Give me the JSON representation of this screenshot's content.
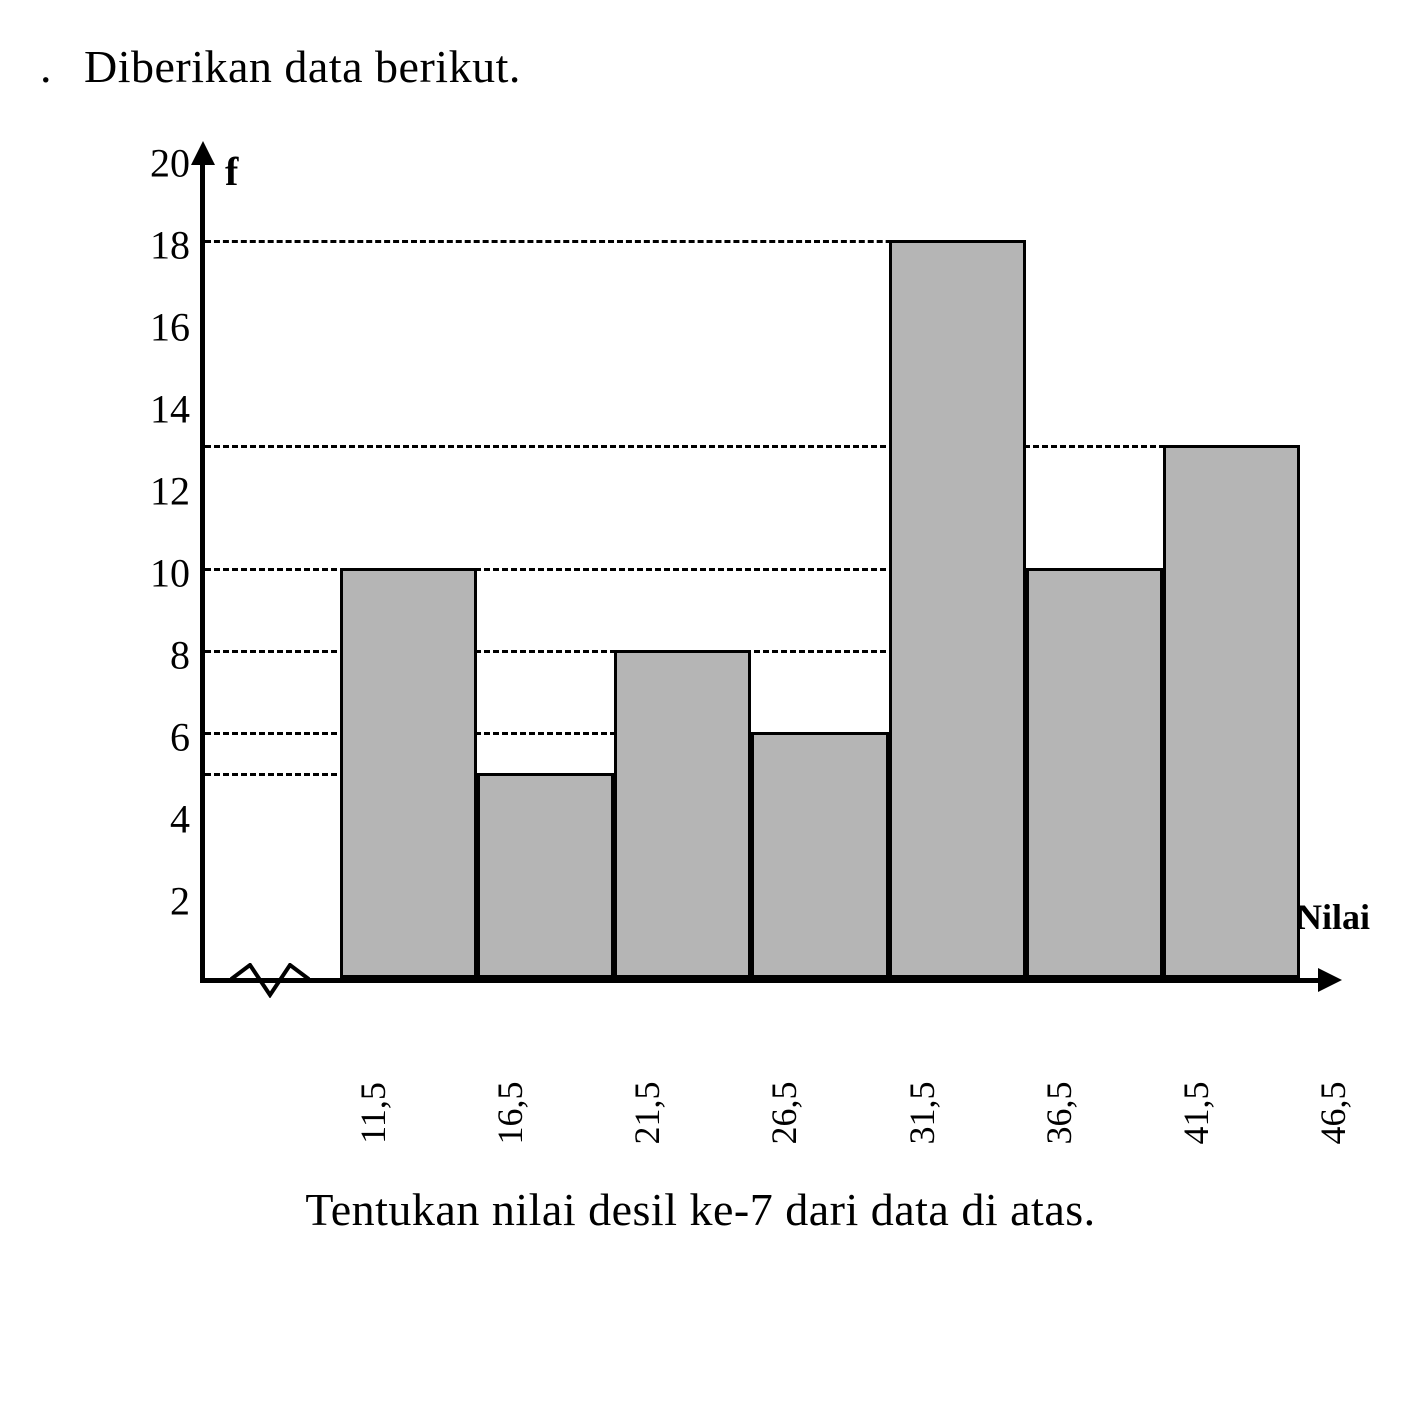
{
  "title_prefix_bullet": ".",
  "title": "Diberikan data berikut.",
  "caption": "Tentukan nilai desil ke-7 dari data di atas.",
  "chart": {
    "type": "bar",
    "y_axis_label": "f",
    "x_axis_label": "Nilai",
    "background_color": "#ffffff",
    "bar_fill_color": "#b5b5b5",
    "bar_border_color": "#000000",
    "axis_color": "#000000",
    "gridline_color": "#000000",
    "gridline_style": "dashed",
    "title_fontsize": 46,
    "axis_label_fontsize": 40,
    "tick_fontsize": 40,
    "x_tick_fontsize": 36,
    "x_tick_rotation": -90,
    "ylim": [
      0,
      20
    ],
    "ytick_step": 2,
    "y_ticks": [
      2,
      4,
      6,
      8,
      10,
      12,
      14,
      16,
      18,
      20
    ],
    "gridlines_at": [
      5,
      6,
      8,
      10,
      13,
      18
    ],
    "x_edges": [
      "11,5",
      "16,5",
      "21,5",
      "26,5",
      "31,5",
      "36,5",
      "41,5",
      "46,5"
    ],
    "values": [
      10,
      5,
      8,
      6,
      18,
      10,
      13
    ],
    "bar_count": 7,
    "axis_break_on_x": true,
    "y_label_font_weight": "bold",
    "x_label_font_weight": "bold"
  }
}
